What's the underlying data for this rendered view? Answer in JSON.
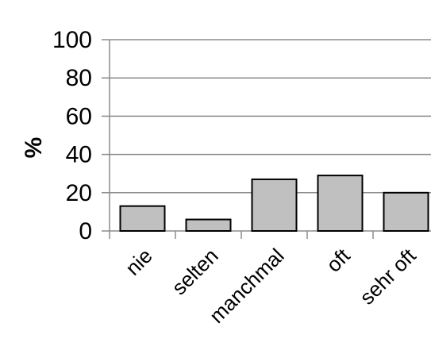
{
  "chart_data": {
    "type": "bar",
    "categories": [
      "nie",
      "selten",
      "manchmal",
      "oft",
      "sehr oft"
    ],
    "values": [
      13,
      6,
      27,
      29,
      20
    ],
    "ylabel": "%",
    "xlabel": "",
    "ylim": [
      0,
      100
    ],
    "yticks": [
      0,
      20,
      40,
      60,
      80,
      100
    ],
    "ytick_labels": [
      "0",
      "20",
      "40",
      "60",
      "80",
      "100"
    ],
    "grid": "horizontal",
    "bar_color": "#c0c0c0",
    "bar_edge_color": "#000000",
    "grid_color": "#8c8c8c",
    "legend": "none"
  }
}
